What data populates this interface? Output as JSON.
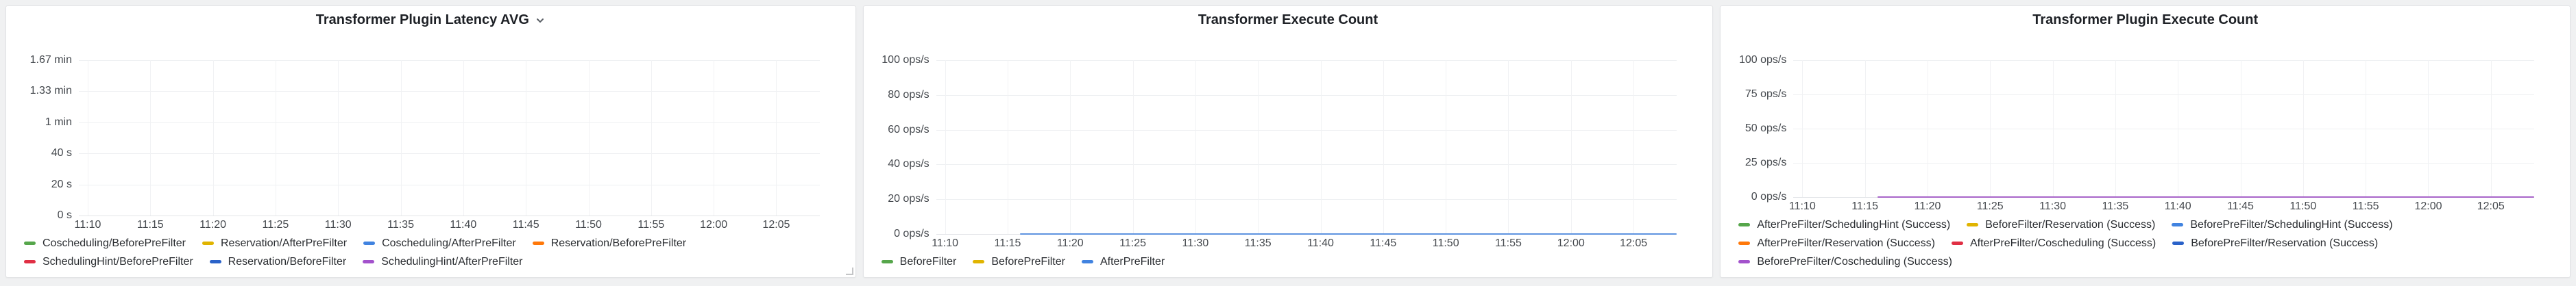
{
  "dashboard": {
    "background_color": "#f0f1f2",
    "panel_background_color": "#ffffff"
  },
  "panels": [
    {
      "title": "Transformer Plugin Latency AVG",
      "has_menu_chevron": true,
      "has_resize_handle": true
    },
    {
      "title": "Transformer Execute Count",
      "has_menu_chevron": false,
      "has_resize_handle": false
    },
    {
      "title": "Transformer Plugin Execute Count",
      "has_menu_chevron": false,
      "has_resize_handle": false
    }
  ],
  "chart_data": [
    {
      "type": "line",
      "title": "Transformer Plugin Latency AVG",
      "xlabel": "",
      "ylabel": "",
      "grid": true,
      "legend_position": "bottom-left",
      "y_ticks": [
        "1.67 min",
        "1.33 min",
        "1 min",
        "40 s",
        "20 s",
        "0 s"
      ],
      "x_ticks": [
        "11:10",
        "11:15",
        "11:20",
        "11:25",
        "11:30",
        "11:35",
        "11:40",
        "11:45",
        "11:50",
        "11:55",
        "12:00",
        "12:05"
      ],
      "visible_lines": [],
      "legend_rows": [
        [
          {
            "label": "Coscheduling/BeforePreFilter",
            "color": "#56a64b"
          },
          {
            "label": "Reservation/AfterPreFilter",
            "color": "#e0b400"
          },
          {
            "label": "Coscheduling/AfterPreFilter",
            "color": "#4183e0"
          },
          {
            "label": "Reservation/BeforePreFilter",
            "color": "#ff780a"
          }
        ],
        [
          {
            "label": "SchedulingHint/BeforePreFilter",
            "color": "#e02f44"
          },
          {
            "label": "Reservation/BeforeFilter",
            "color": "#2a62c9"
          },
          {
            "label": "SchedulingHint/AfterPreFilter",
            "color": "#a352cc"
          }
        ]
      ]
    },
    {
      "type": "line",
      "title": "Transformer Execute Count",
      "xlabel": "",
      "ylabel": "",
      "grid": true,
      "legend_position": "bottom-left",
      "y_ticks": [
        "100 ops/s",
        "80 ops/s",
        "60 ops/s",
        "40 ops/s",
        "20 ops/s",
        "0 ops/s"
      ],
      "x_ticks": [
        "11:10",
        "11:15",
        "11:20",
        "11:25",
        "11:30",
        "11:35",
        "11:40",
        "11:45",
        "11:50",
        "11:55",
        "12:00",
        "12:05"
      ],
      "visible_lines": [
        {
          "series": "AfterPreFilter",
          "color": "#5e93e0",
          "y_value": 0,
          "y_value_label": "0 ops/s",
          "x_start": "11:16",
          "x_end": "plot-right-edge"
        }
      ],
      "legend_rows": [
        [
          {
            "label": "BeforeFilter",
            "color": "#56a64b"
          },
          {
            "label": "BeforePreFilter",
            "color": "#e0b400"
          },
          {
            "label": "AfterPreFilter",
            "color": "#4183e0"
          }
        ]
      ]
    },
    {
      "type": "line",
      "title": "Transformer Plugin Execute Count",
      "xlabel": "",
      "ylabel": "",
      "grid": true,
      "legend_position": "bottom-left",
      "y_ticks": [
        "100 ops/s",
        "75 ops/s",
        "50 ops/s",
        "25 ops/s",
        "0 ops/s"
      ],
      "x_ticks": [
        "11:10",
        "11:15",
        "11:20",
        "11:25",
        "11:30",
        "11:35",
        "11:40",
        "11:45",
        "11:50",
        "11:55",
        "12:00",
        "12:05"
      ],
      "visible_lines": [
        {
          "series": "BeforePreFilter/Coscheduling (Success)",
          "color": "#a865c9",
          "y_value": 0,
          "y_value_label": "0 ops/s",
          "x_start": "11:16",
          "x_end": "plot-right-edge"
        }
      ],
      "legend_rows": [
        [
          {
            "label": "AfterPreFilter/SchedulingHint (Success)",
            "color": "#56a64b"
          },
          {
            "label": "BeforeFilter/Reservation (Success)",
            "color": "#e0b400"
          },
          {
            "label": "BeforePreFilter/SchedulingHint (Success)",
            "color": "#4183e0"
          }
        ],
        [
          {
            "label": "AfterPreFilter/Reservation (Success)",
            "color": "#ff780a"
          },
          {
            "label": "AfterPreFilter/Coscheduling (Success)",
            "color": "#e02f44"
          },
          {
            "label": "BeforePreFilter/Reservation (Success)",
            "color": "#2a62c9"
          }
        ],
        [
          {
            "label": "BeforePreFilter/Coscheduling (Success)",
            "color": "#a352cc"
          }
        ]
      ]
    }
  ]
}
